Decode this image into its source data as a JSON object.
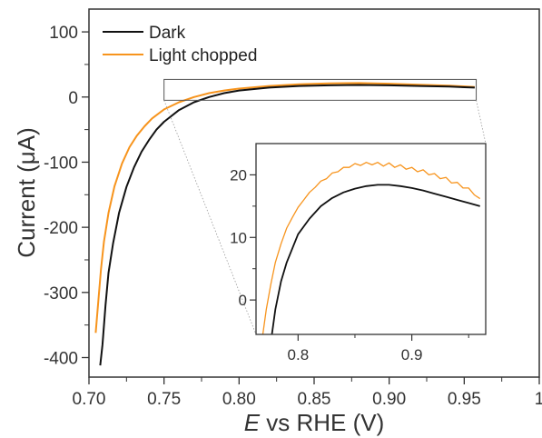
{
  "chart_data": [
    {
      "type": "line",
      "xlabel_italic": "E",
      "xlabel_rest": " vs RHE (V)",
      "ylabel_prefix": "Current (",
      "ylabel_mu": "μ",
      "ylabel_suffix": "A)",
      "xlim": [
        0.7,
        1.0
      ],
      "ylim": [
        -430,
        135
      ],
      "xticks": [
        0.7,
        0.75,
        0.8,
        0.85,
        0.9,
        0.95,
        1.0
      ],
      "xtick_labels": [
        "0.70",
        "0.75",
        "0.80",
        "0.85",
        "0.90",
        "0.95",
        "1"
      ],
      "yticks": [
        -400,
        -300,
        -200,
        -100,
        0,
        100
      ],
      "ytick_labels": [
        "-400",
        "-300",
        "-200",
        "-100",
        "0",
        "100"
      ],
      "legend_position": "top-left",
      "series": [
        {
          "name": "Dark",
          "color": "#111111",
          "x": [
            0.7075,
            0.709,
            0.711,
            0.713,
            0.716,
            0.72,
            0.725,
            0.73,
            0.735,
            0.74,
            0.745,
            0.75,
            0.76,
            0.77,
            0.78,
            0.79,
            0.8,
            0.82,
            0.84,
            0.86,
            0.88,
            0.9,
            0.92,
            0.94,
            0.957
          ],
          "y": [
            -412,
            -380,
            -320,
            -270,
            -225,
            -178,
            -138,
            -108,
            -84,
            -66,
            -50,
            -38,
            -20,
            -8,
            0,
            6,
            10,
            14.5,
            17,
            18,
            18.5,
            18,
            17,
            16,
            14.5
          ]
        },
        {
          "name": "Light chopped",
          "color": "#f7941d",
          "x": [
            0.7045,
            0.706,
            0.708,
            0.71,
            0.713,
            0.717,
            0.722,
            0.727,
            0.732,
            0.737,
            0.742,
            0.75,
            0.76,
            0.77,
            0.78,
            0.79,
            0.8,
            0.82,
            0.84,
            0.86,
            0.88,
            0.9,
            0.92,
            0.94,
            0.957
          ],
          "y": [
            -362,
            -320,
            -265,
            -222,
            -178,
            -137,
            -102,
            -77,
            -59,
            -45,
            -33,
            -19,
            -8,
            0,
            6,
            10,
            13,
            17,
            19.5,
            21,
            21.5,
            20.5,
            19,
            17.5,
            15.5
          ]
        }
      ]
    },
    {
      "type": "line",
      "role": "inset",
      "xlim": [
        0.763,
        0.965
      ],
      "ylim": [
        -5.5,
        25
      ],
      "xticks": [
        0.8,
        0.9
      ],
      "xtick_labels": [
        "0.8",
        "0.9"
      ],
      "yticks": [
        0,
        10,
        20
      ],
      "ytick_labels": [
        "0",
        "10",
        "20"
      ],
      "series": [
        {
          "name": "Dark",
          "color": "#111111",
          "x": [
            0.777,
            0.78,
            0.785,
            0.79,
            0.8,
            0.81,
            0.82,
            0.83,
            0.84,
            0.85,
            0.86,
            0.87,
            0.88,
            0.89,
            0.9,
            0.91,
            0.92,
            0.93,
            0.94,
            0.95,
            0.96
          ],
          "y": [
            -5.5,
            -1.5,
            3,
            6,
            10.5,
            13,
            15,
            16.3,
            17.2,
            17.8,
            18.2,
            18.4,
            18.4,
            18.2,
            17.9,
            17.5,
            17.0,
            16.5,
            16.0,
            15.5,
            15.0
          ]
        },
        {
          "name": "Light chopped",
          "color": "#f7941d",
          "x": [
            0.769,
            0.772,
            0.776,
            0.78,
            0.785,
            0.79,
            0.795,
            0.8,
            0.805,
            0.81,
            0.815,
            0.82,
            0.825,
            0.83,
            0.835,
            0.84,
            0.845,
            0.85,
            0.855,
            0.86,
            0.865,
            0.87,
            0.875,
            0.88,
            0.885,
            0.89,
            0.895,
            0.9,
            0.905,
            0.91,
            0.915,
            0.92,
            0.925,
            0.93,
            0.935,
            0.94,
            0.945,
            0.95,
            0.955,
            0.96
          ],
          "y": [
            -5.5,
            -1.5,
            2.5,
            6,
            9,
            11.5,
            13.2,
            14.8,
            16.0,
            17.2,
            18.0,
            19.0,
            19.4,
            20.3,
            20.5,
            21.2,
            21.2,
            21.8,
            21.5,
            22.0,
            21.6,
            22.0,
            21.4,
            21.9,
            21.2,
            21.6,
            20.9,
            21.2,
            20.5,
            20.8,
            20.0,
            20.2,
            19.4,
            19.6,
            18.7,
            18.8,
            17.9,
            17.9,
            16.8,
            16.2
          ]
        }
      ]
    }
  ]
}
